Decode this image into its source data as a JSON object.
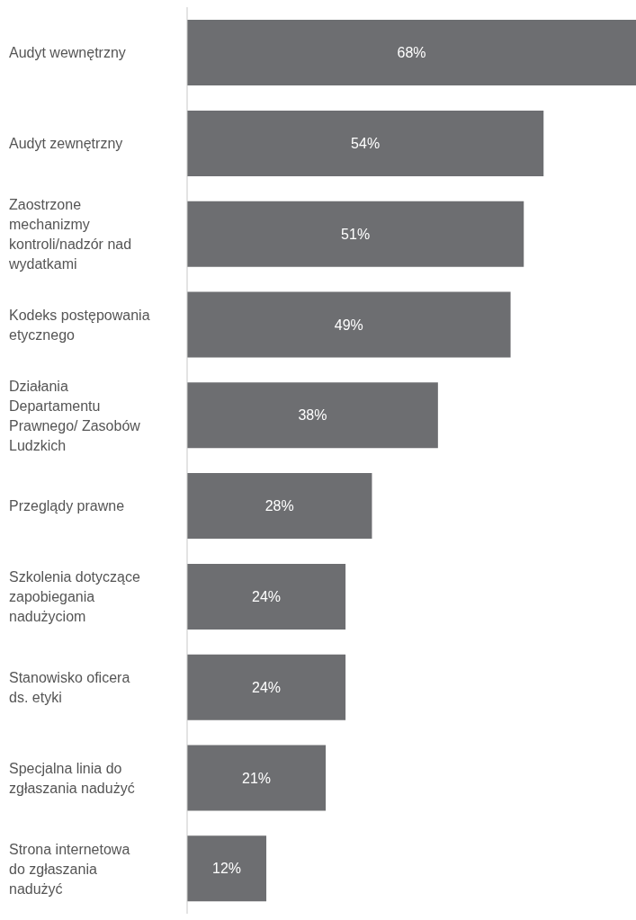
{
  "chart_data": {
    "type": "bar",
    "orientation": "horizontal",
    "value_labels": [
      "68%",
      "54%",
      "51%",
      "49%",
      "38%",
      "28%",
      "24%",
      "24%",
      "21%",
      "12%"
    ],
    "categories": [
      "Audyt wewnętrzny",
      "Audyt zewnętrzny",
      "Zaostrzone mechanizmy kontroli/nadzór nad wydatkami",
      "Kodeks postępowania etycznego",
      "Działania Departamentu Prawnego/ Zasobów Ludzkich",
      "Przeglądy prawne",
      "Szkolenia dotyczące zapobiegania nadużyciom",
      "Stanowisko oficera ds. etyki",
      "Specjalna linia do zgłaszania nadużyć",
      "Strona internetowa do zgłaszania nadużyć"
    ],
    "values": [
      68,
      54,
      51,
      49,
      38,
      28,
      24,
      24,
      21,
      12
    ],
    "color": "#6d6e71"
  }
}
